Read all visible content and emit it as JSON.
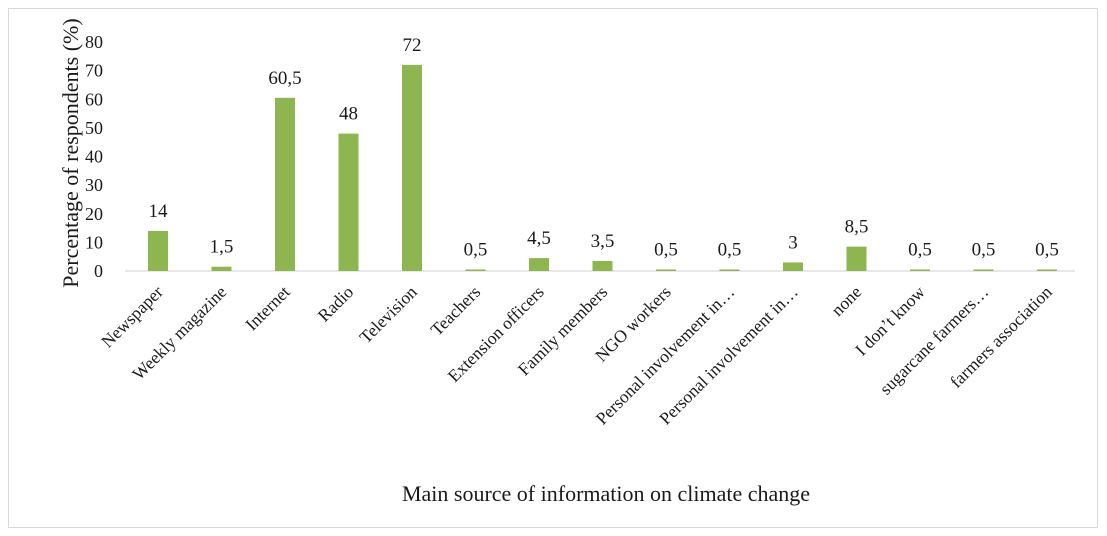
{
  "chart_data": {
    "type": "bar",
    "xlabel": "Main source of information on climate change",
    "ylabel": "Percentage of respondents (%)",
    "ylim": [
      0,
      80
    ],
    "yticks": [
      "0",
      "10",
      "20",
      "30",
      "40",
      "50",
      "60",
      "70",
      "80"
    ],
    "grid": false,
    "bar_color": "#8db550",
    "categories": [
      "Newspaper",
      "Weekly magazine",
      "Internet",
      "Radio",
      "Television",
      "Teachers",
      "Extension officers",
      "Family members",
      "NGO workers",
      "Personal involvement in…",
      "Personal involvement in…",
      "none",
      "I don’t know",
      "sugarcane farmers…",
      "farmers association"
    ],
    "values": [
      14,
      1.5,
      60.5,
      48,
      72,
      0.5,
      4.5,
      3.5,
      0.5,
      0.5,
      3,
      8.5,
      0.5,
      0.5,
      0.5
    ],
    "data_labels": [
      "14",
      "1,5",
      "60,5",
      "48",
      "72",
      "0,5",
      "4,5",
      "3,5",
      "0,5",
      "0,5",
      "3",
      "8,5",
      "0,5",
      "0,5",
      "0,5"
    ]
  }
}
